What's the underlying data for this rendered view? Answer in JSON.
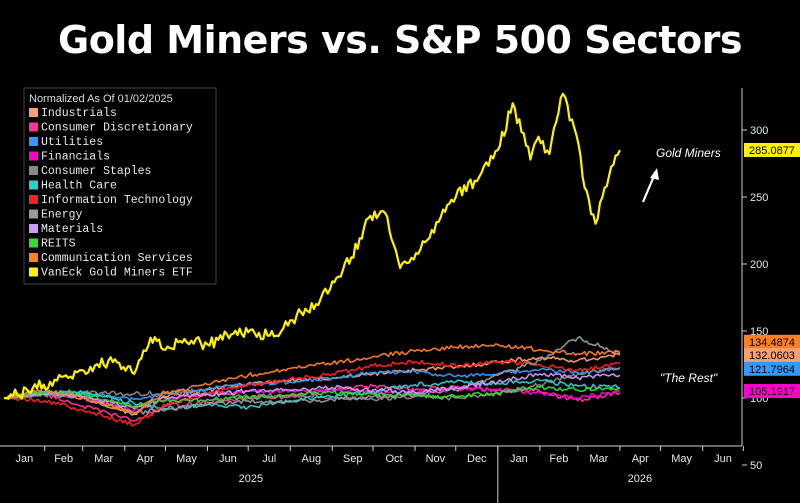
{
  "page": {
    "title": "Gold Miners vs. S&P 500 Sectors"
  },
  "chart_data": {
    "type": "line",
    "title": "Gold Miners vs. S&P 500 Sectors",
    "legend_title": "Normalized As Of 01/02/2025",
    "legend_position": "top-left",
    "grid": false,
    "x_labels": [
      "Jan",
      "Feb",
      "Mar",
      "Apr",
      "May",
      "Jun",
      "Jul",
      "Aug",
      "Sep",
      "Oct",
      "Nov",
      "Dec",
      "Jan",
      "Feb",
      "Mar",
      "Apr",
      "May",
      "Jun"
    ],
    "year_labels": [
      "2025",
      "2026"
    ],
    "xlim": [
      "2025-01-02",
      "2026-06-30"
    ],
    "ylim": [
      50,
      330
    ],
    "y_ticks": [
      50,
      100,
      150,
      200,
      250,
      300
    ],
    "annotations": [
      {
        "text": "Gold Miners"
      },
      {
        "text": "\"The Rest\""
      }
    ],
    "value_labels": [
      {
        "text": "285.0877",
        "color": "#fff200"
      },
      {
        "text": "134.4874",
        "color": "#ff7f27"
      },
      {
        "text": "132.0603",
        "color": "#f7a072"
      },
      {
        "text": "121.7964",
        "color": "#3399ff"
      },
      {
        "text": "105.1917",
        "color": "#ff00cc"
      }
    ],
    "series": [
      {
        "name": "Industrials",
        "color": "#f7a072",
        "x": [
          "2025-01-02",
          "2025-02-01",
          "2025-03-01",
          "2025-04-08",
          "2025-05-01",
          "2025-06-01",
          "2025-07-01",
          "2025-08-01",
          "2025-09-01",
          "2025-10-01",
          "2025-11-01",
          "2025-12-01",
          "2026-01-01",
          "2026-02-01",
          "2026-03-01",
          "2026-04-01"
        ],
        "values": [
          100,
          104,
          101,
          88,
          101,
          106,
          111,
          113,
          115,
          118,
          121,
          123,
          127,
          130,
          128,
          132
        ]
      },
      {
        "name": "Consumer Discretionary",
        "color": "#ff3399",
        "x": [
          "2025-01-02",
          "2025-02-01",
          "2025-03-01",
          "2025-04-08",
          "2025-05-01",
          "2025-06-01",
          "2025-07-01",
          "2025-08-01",
          "2025-09-01",
          "2025-10-01",
          "2025-11-01",
          "2025-12-01",
          "2026-01-01",
          "2026-02-01",
          "2026-03-01",
          "2026-04-01"
        ],
        "values": [
          100,
          103,
          94,
          83,
          94,
          97,
          100,
          101,
          106,
          109,
          106,
          108,
          106,
          105,
          98,
          104
        ]
      },
      {
        "name": "Utilities",
        "color": "#3399ff",
        "x": [
          "2025-01-02",
          "2025-02-01",
          "2025-03-01",
          "2025-04-08",
          "2025-05-01",
          "2025-06-01",
          "2025-07-01",
          "2025-08-01",
          "2025-09-01",
          "2025-10-01",
          "2025-11-01",
          "2025-12-01",
          "2026-01-01",
          "2026-02-01",
          "2026-03-01",
          "2026-04-01"
        ],
        "values": [
          100,
          103,
          104,
          99,
          103,
          107,
          110,
          112,
          115,
          119,
          120,
          116,
          118,
          121,
          119,
          122
        ]
      },
      {
        "name": "Financials",
        "color": "#ff00cc",
        "x": [
          "2025-01-02",
          "2025-02-01",
          "2025-03-01",
          "2025-04-08",
          "2025-05-01",
          "2025-06-01",
          "2025-07-01",
          "2025-08-01",
          "2025-09-01",
          "2025-10-01",
          "2025-11-01",
          "2025-12-01",
          "2026-01-01",
          "2026-02-01",
          "2026-03-01",
          "2026-04-01"
        ],
        "values": [
          100,
          104,
          101,
          91,
          99,
          103,
          105,
          105,
          106,
          104,
          104,
          107,
          106,
          104,
          100,
          105
        ]
      },
      {
        "name": "Consumer Staples",
        "color": "#888888",
        "x": [
          "2025-01-02",
          "2025-02-01",
          "2025-03-01",
          "2025-04-08",
          "2025-05-01",
          "2025-06-01",
          "2025-07-01",
          "2025-08-01",
          "2025-09-01",
          "2025-10-01",
          "2025-11-01",
          "2025-12-01",
          "2026-01-01",
          "2026-02-01",
          "2026-03-01",
          "2026-04-01"
        ],
        "values": [
          100,
          102,
          104,
          103,
          104,
          103,
          101,
          102,
          101,
          99,
          101,
          100,
          103,
          110,
          118,
          123
        ]
      },
      {
        "name": "Health Care",
        "color": "#33cccc",
        "x": [
          "2025-01-02",
          "2025-02-01",
          "2025-03-01",
          "2025-04-08",
          "2025-05-01",
          "2025-06-01",
          "2025-07-01",
          "2025-08-01",
          "2025-09-01",
          "2025-10-01",
          "2025-11-01",
          "2025-12-01",
          "2026-01-01",
          "2026-02-01",
          "2026-03-01",
          "2026-04-01"
        ],
        "values": [
          100,
          105,
          104,
          96,
          92,
          95,
          93,
          98,
          101,
          105,
          110,
          112,
          111,
          113,
          109,
          108
        ]
      },
      {
        "name": "Information Technology",
        "color": "#ff2020",
        "x": [
          "2025-01-02",
          "2025-02-01",
          "2025-03-01",
          "2025-04-08",
          "2025-05-01",
          "2025-06-01",
          "2025-07-01",
          "2025-08-01",
          "2025-09-01",
          "2025-10-01",
          "2025-11-01",
          "2025-12-01",
          "2026-01-01",
          "2026-02-01",
          "2026-03-01",
          "2026-04-01"
        ],
        "values": [
          100,
          98,
          91,
          80,
          95,
          103,
          110,
          114,
          118,
          124,
          127,
          124,
          127,
          125,
          121,
          126
        ]
      },
      {
        "name": "Energy",
        "color": "#999999",
        "x": [
          "2025-01-02",
          "2025-02-01",
          "2025-03-01",
          "2025-04-08",
          "2025-05-01",
          "2025-06-01",
          "2025-07-01",
          "2025-08-01",
          "2025-09-01",
          "2025-10-01",
          "2025-11-01",
          "2025-12-01",
          "2026-01-01",
          "2026-02-01",
          "2026-03-01",
          "2026-04-01"
        ],
        "values": [
          100,
          103,
          101,
          89,
          91,
          95,
          98,
          97,
          99,
          101,
          103,
          106,
          117,
          128,
          145,
          133
        ]
      },
      {
        "name": "Materials",
        "color": "#cc99ff",
        "x": [
          "2025-01-02",
          "2025-02-01",
          "2025-03-01",
          "2025-04-08",
          "2025-05-01",
          "2025-06-01",
          "2025-07-01",
          "2025-08-01",
          "2025-09-01",
          "2025-10-01",
          "2025-11-01",
          "2025-12-01",
          "2026-01-01",
          "2026-02-01",
          "2026-03-01",
          "2026-04-01"
        ],
        "values": [
          100,
          103,
          101,
          92,
          100,
          103,
          105,
          106,
          108,
          106,
          104,
          108,
          112,
          118,
          115,
          117
        ]
      },
      {
        "name": "REITS",
        "color": "#33dd33",
        "x": [
          "2025-01-02",
          "2025-02-01",
          "2025-03-01",
          "2025-04-08",
          "2025-05-01",
          "2025-06-01",
          "2025-07-01",
          "2025-08-01",
          "2025-09-01",
          "2025-10-01",
          "2025-11-01",
          "2025-12-01",
          "2026-01-01",
          "2026-02-01",
          "2026-03-01",
          "2026-04-01"
        ],
        "values": [
          100,
          104,
          103,
          94,
          98,
          99,
          100,
          102,
          104,
          103,
          102,
          101,
          104,
          108,
          106,
          107
        ]
      },
      {
        "name": "Communication Services",
        "color": "#ff7f27",
        "x": [
          "2025-01-02",
          "2025-02-01",
          "2025-03-01",
          "2025-04-08",
          "2025-05-01",
          "2025-06-01",
          "2025-07-01",
          "2025-08-01",
          "2025-09-01",
          "2025-10-01",
          "2025-11-01",
          "2025-12-01",
          "2026-01-01",
          "2026-02-01",
          "2026-03-01",
          "2026-04-01"
        ],
        "values": [
          100,
          107,
          100,
          89,
          104,
          110,
          117,
          122,
          126,
          131,
          135,
          138,
          140,
          136,
          133,
          134
        ]
      },
      {
        "name": "VanEck Gold Miners ETF",
        "color": "#fff200",
        "x": [
          "2025-01-02",
          "2025-01-20",
          "2025-02-05",
          "2025-02-20",
          "2025-03-05",
          "2025-03-20",
          "2025-04-08",
          "2025-04-20",
          "2025-05-01",
          "2025-05-15",
          "2025-06-01",
          "2025-06-20",
          "2025-07-01",
          "2025-07-20",
          "2025-08-01",
          "2025-08-20",
          "2025-09-01",
          "2025-09-15",
          "2025-09-29",
          "2025-10-10",
          "2025-10-21",
          "2025-11-05",
          "2025-11-20",
          "2025-12-01",
          "2025-12-15",
          "2026-01-01",
          "2026-01-12",
          "2026-01-25",
          "2026-01-31",
          "2026-02-08",
          "2026-02-18",
          "2026-02-28",
          "2026-03-06",
          "2026-03-14",
          "2026-03-24",
          "2026-04-01"
        ],
        "values": [
          100,
          105,
          112,
          116,
          119,
          128,
          118,
          145,
          136,
          144,
          140,
          148,
          149,
          146,
          158,
          170,
          187,
          205,
          236,
          238,
          197,
          211,
          235,
          250,
          262,
          285,
          320,
          278,
          295,
          282,
          327,
          296,
          257,
          230,
          266,
          285
        ]
      }
    ]
  }
}
